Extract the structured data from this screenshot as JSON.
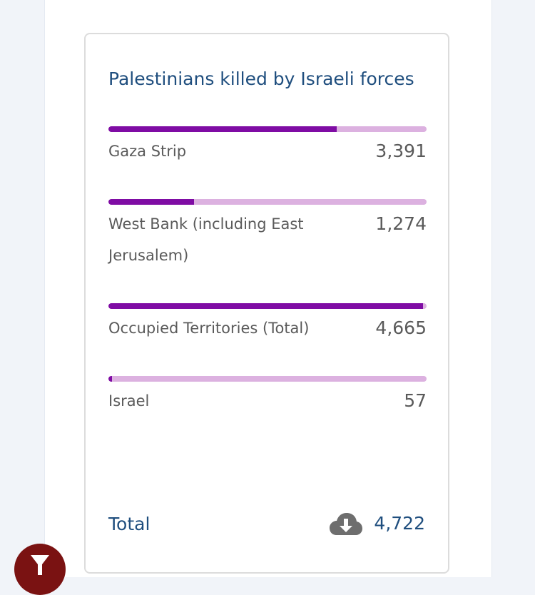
{
  "card": {
    "title": "Palestinians killed by Israeli forces",
    "rows": [
      {
        "label": "Gaza Strip",
        "value": "3,391",
        "fill_fraction": 0.718
      },
      {
        "label": "West Bank (including East Jerusalem)",
        "value": "1,274",
        "fill_fraction": 0.27
      },
      {
        "label": "Occupied Territories (Total)",
        "value": "4,665",
        "fill_fraction": 0.988
      },
      {
        "label": "Israel",
        "value": "57",
        "fill_fraction": 0.012
      }
    ],
    "total_label": "Total",
    "total_value": "4,722"
  },
  "icons": {
    "download": "cloud-download-icon",
    "filter": "filter-icon"
  },
  "colors": {
    "title": "#1f4e7e",
    "bar_fill": "#7f0ca4",
    "bar_track": "#dcb1e0",
    "filter_button": "#7a1212"
  }
}
